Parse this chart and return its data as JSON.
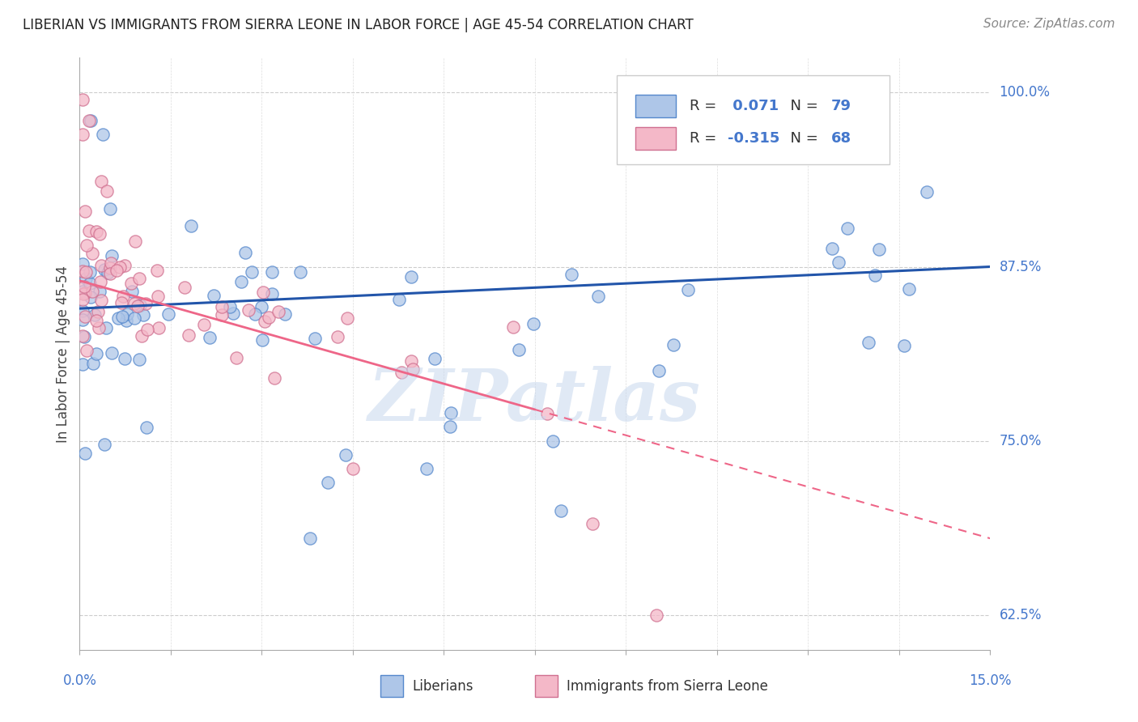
{
  "title": "LIBERIAN VS IMMIGRANTS FROM SIERRA LEONE IN LABOR FORCE | AGE 45-54 CORRELATION CHART",
  "source": "Source: ZipAtlas.com",
  "xlim": [
    0.0,
    15.0
  ],
  "ylim": [
    60.0,
    102.5
  ],
  "yticks": [
    62.5,
    75.0,
    87.5,
    100.0
  ],
  "ytick_labels": [
    "62.5%",
    "75.0%",
    "87.5%",
    "100.0%"
  ],
  "blue_R": 0.071,
  "blue_N": 79,
  "pink_R": -0.315,
  "pink_N": 68,
  "blue_color": "#aec6e8",
  "blue_edge": "#5588cc",
  "pink_color": "#f4b8c8",
  "pink_edge": "#d07090",
  "blue_trend_color": "#2255aa",
  "pink_trend_color": "#ee6688",
  "watermark": "ZIPatlas",
  "blue_trend_y0": 84.5,
  "blue_trend_y1": 87.5,
  "pink_trend_y0": 86.5,
  "pink_trend_y1": 68.0
}
